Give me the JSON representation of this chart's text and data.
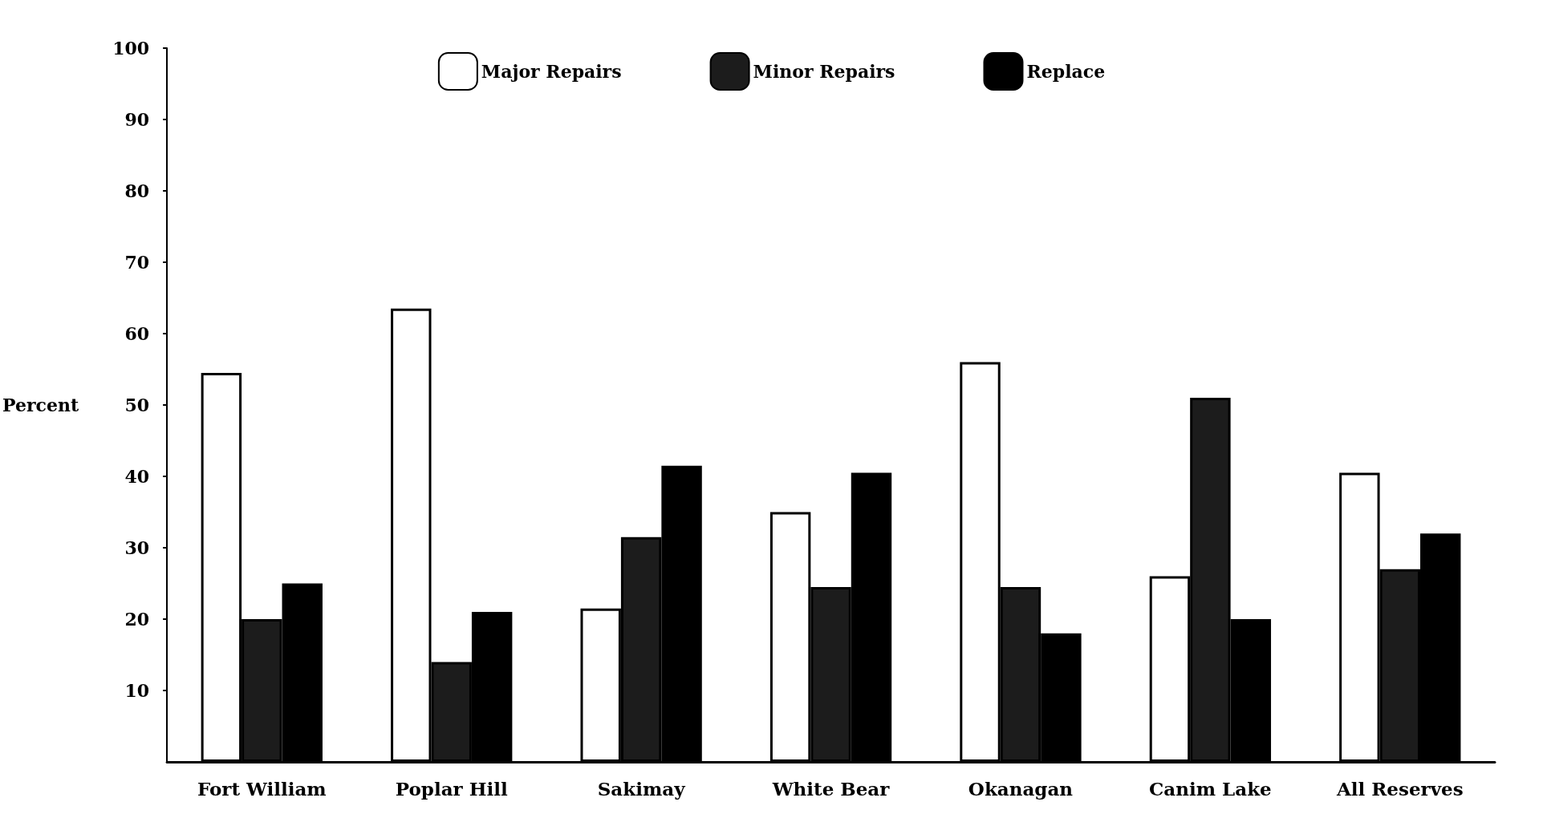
{
  "chart_data": {
    "type": "bar",
    "ylabel": "Percent",
    "categories": [
      "Fort William",
      "Poplar Hill",
      "Sakimay",
      "White Bear",
      "Okanagan",
      "Canim Lake",
      "All Reserves"
    ],
    "series": [
      {
        "name": "Major Repairs",
        "color": "#ffffff",
        "values": [
          54.5,
          63.5,
          21.5,
          35,
          56,
          26,
          40.5
        ]
      },
      {
        "name": "Minor Repairs",
        "color": "#1c1c1c",
        "values": [
          20,
          14,
          31.5,
          24.5,
          24.5,
          51,
          27
        ]
      },
      {
        "name": "Replace",
        "color": "#000000",
        "values": [
          25,
          21,
          41.5,
          40.5,
          18,
          20,
          32
        ]
      }
    ],
    "ylim": [
      0,
      100
    ],
    "yticks": [
      10,
      20,
      30,
      40,
      50,
      60,
      70,
      80,
      90,
      100
    ],
    "grid": false,
    "legend": "top"
  }
}
